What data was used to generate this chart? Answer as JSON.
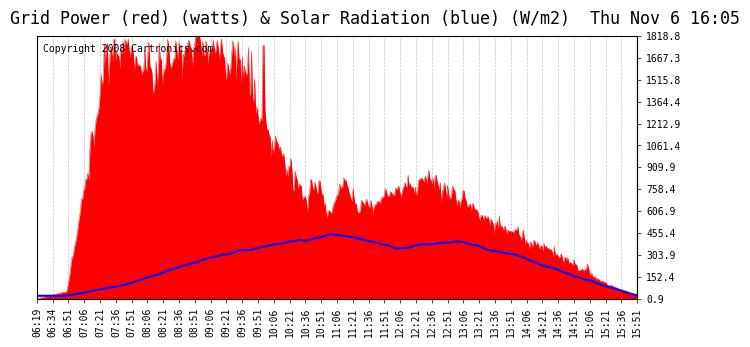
{
  "title": "Grid Power (red) (watts) & Solar Radiation (blue) (W/m2)  Thu Nov 6 16:05",
  "copyright": "Copyright 2008 Cartronics.com",
  "y_min": 0.9,
  "y_max": 1818.8,
  "y_ticks": [
    0.9,
    152.4,
    303.9,
    455.4,
    606.9,
    758.4,
    909.9,
    1061.4,
    1212.9,
    1364.4,
    1515.8,
    1667.3,
    1818.8
  ],
  "bg_color": "#ffffff",
  "plot_bg_color": "#ffffff",
  "grid_color": "#aaaaaa",
  "red_color": "#ff0000",
  "blue_color": "#0000ff",
  "title_fontsize": 12,
  "copyright_fontsize": 7,
  "tick_fontsize": 7,
  "x_labels": [
    "06:19",
    "06:34",
    "06:51",
    "07:06",
    "07:21",
    "07:36",
    "07:51",
    "08:06",
    "08:21",
    "08:36",
    "08:51",
    "09:06",
    "09:21",
    "09:36",
    "09:51",
    "10:06",
    "10:21",
    "10:36",
    "10:51",
    "11:06",
    "11:21",
    "11:36",
    "11:51",
    "12:06",
    "12:21",
    "12:36",
    "12:51",
    "13:06",
    "13:21",
    "13:36",
    "13:51",
    "14:06",
    "14:21",
    "14:36",
    "14:51",
    "15:06",
    "15:21",
    "15:36",
    "15:51"
  ]
}
